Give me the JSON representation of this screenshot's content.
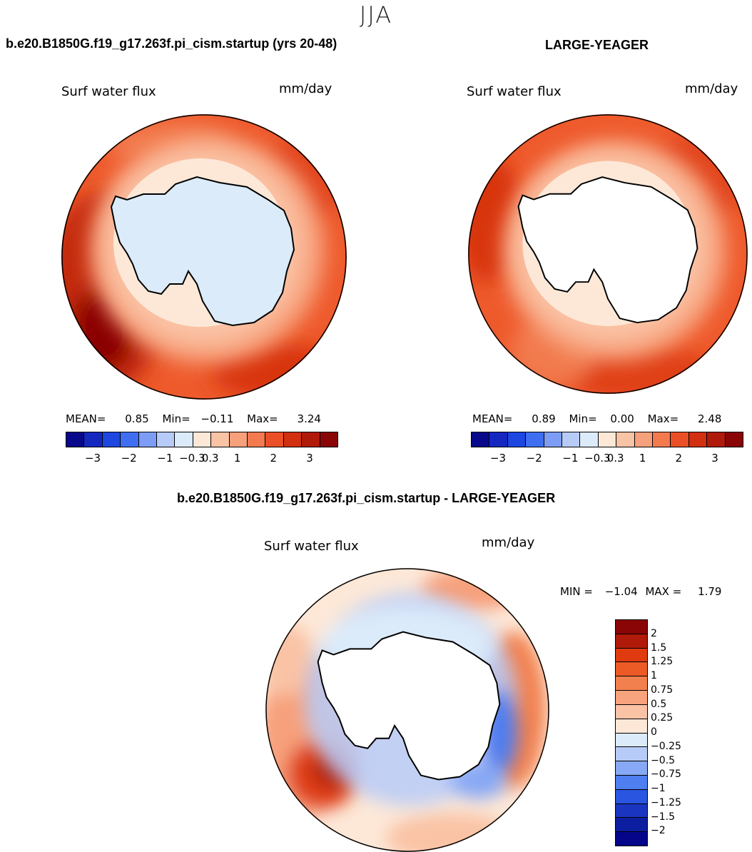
{
  "season": "JJA",
  "panels": [
    {
      "title": "b.e20.B1850G.f19_g17.263f.pi_cism.startup (yrs 20-48)",
      "variable": "Surf water flux",
      "units": "mm/day",
      "stats": {
        "mean_label": "MEAN=",
        "mean": "0.85",
        "min_label": "Min=",
        "min": "−0.11",
        "max_label": "Max=",
        "max": "3.24"
      }
    },
    {
      "title": "LARGE-YEAGER",
      "variable": "Surf water flux",
      "units": "mm/day",
      "stats": {
        "mean_label": "MEAN=",
        "mean": "0.89",
        "min_label": "Min=",
        "min": "0.00",
        "max_label": "Max=",
        "max": "2.48"
      }
    }
  ],
  "diff_panel": {
    "title": "b.e20.B1850G.f19_g17.263f.pi_cism.startup - LARGE-YEAGER",
    "variable": "Surf water flux",
    "units": "mm/day",
    "min_label": "MIN =",
    "min": "−1.04",
    "max_label": "MAX =",
    "max": "1.79"
  },
  "chart_data": [
    {
      "type": "contour-map",
      "projection": "south polar stereographic",
      "title": "b.e20.B1850G.f19_g17.263f.pi_cism.startup (yrs 20-48)",
      "field": "Surf water flux",
      "units": "mm/day",
      "mean": 0.85,
      "min": -0.11,
      "max": 3.24,
      "colorbar_ticks": [
        "−3",
        "−2",
        "−1",
        "−0.3",
        "0.3",
        "1",
        "2",
        "3"
      ]
    },
    {
      "type": "contour-map",
      "projection": "south polar stereographic",
      "title": "LARGE-YEAGER",
      "field": "Surf water flux",
      "units": "mm/day",
      "mean": 0.89,
      "min": 0.0,
      "max": 2.48,
      "colorbar_ticks": [
        "−3",
        "−2",
        "−1",
        "−0.3",
        "0.3",
        "1",
        "2",
        "3"
      ]
    },
    {
      "type": "contour-map",
      "projection": "south polar stereographic",
      "title": "b.e20.B1850G.f19_g17.263f.pi_cism.startup - LARGE-YEAGER",
      "field": "Surf water flux",
      "units": "mm/day",
      "min": -1.04,
      "max": 1.79,
      "colorbar_labels_top_to_bottom": [
        "2",
        "1.5",
        "1.25",
        "1",
        "0.75",
        "0.5",
        "0.25",
        "0",
        "−0.25",
        "−0.5",
        "−0.75",
        "−1",
        "−1.25",
        "−1.5",
        "−2"
      ]
    }
  ],
  "palettes": {
    "abs": [
      "#08088a",
      "#1428c0",
      "#1e46e0",
      "#3f6ef0",
      "#7d9cf5",
      "#b7cbf8",
      "#dcebfa",
      "#fde8d8",
      "#f9c3a5",
      "#f7a07c",
      "#f37a4e",
      "#ea4f25",
      "#d23010",
      "#b01a0a",
      "#8a0505"
    ],
    "diff": [
      "#8a0505",
      "#b01a0a",
      "#e03a10",
      "#ec5a26",
      "#f2804e",
      "#f7a37d",
      "#fac3a5",
      "#fde8d8",
      "#dcebfa",
      "#b7cbf8",
      "#87a8f5",
      "#4f7ef0",
      "#2a55e0",
      "#1a35c0",
      "#0c1ea0",
      "#05058a"
    ]
  }
}
